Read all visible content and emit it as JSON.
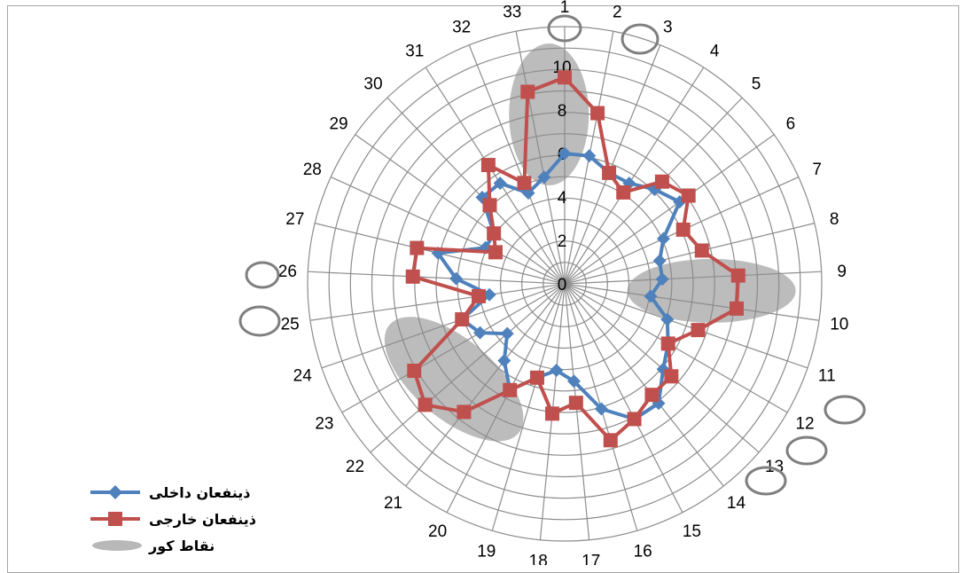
{
  "chart_data": {
    "type": "radar",
    "categories": [
      "1",
      "2",
      "3",
      "4",
      "5",
      "6",
      "7",
      "8",
      "9",
      "10",
      "11",
      "12",
      "13",
      "14",
      "15",
      "16",
      "17",
      "18",
      "19",
      "20",
      "21",
      "22",
      "23",
      "24",
      "25",
      "26",
      "27",
      "28",
      "29",
      "30",
      "31",
      "32",
      "33"
    ],
    "rlim": [
      0,
      10
    ],
    "rticks": [
      "0",
      "2",
      "4",
      "6",
      "8",
      "10"
    ],
    "grid": true,
    "series": [
      {
        "name": "ذینفعان داخلی",
        "color": "#4f81bd",
        "marker": "diamond",
        "values": [
          6.0,
          6.0,
          5.5,
          5.5,
          6.0,
          6.5,
          5.0,
          4.5,
          4.5,
          4.0,
          5.0,
          5.5,
          6.0,
          7.0,
          7.0,
          6.0,
          4.5,
          4.0,
          4.5,
          5.5,
          4.5,
          3.5,
          4.5,
          5.0,
          3.5,
          5.0,
          6.0,
          4.0,
          4.0,
          5.5,
          5.5,
          4.5,
          5.0
        ]
      },
      {
        "name": "ذینفعان خارجی",
        "color": "#c0504d",
        "marker": "square",
        "values": [
          9.5,
          8.0,
          5.5,
          5.0,
          6.5,
          7.0,
          6.0,
          6.5,
          8.0,
          8.0,
          6.5,
          5.5,
          6.5,
          6.5,
          7.0,
          7.5,
          5.5,
          6.0,
          4.5,
          5.5,
          7.5,
          8.5,
          8.0,
          5.0,
          4.0,
          7.0,
          7.0,
          3.5,
          4.0,
          5.0,
          6.5,
          5.0,
          9.0
        ]
      }
    ],
    "highlight": {
      "name": "نقاط کور",
      "color": "#a6a6a6",
      "categories": [
        "1",
        "33",
        "9",
        "10",
        "21",
        "22",
        "23"
      ]
    },
    "legend": "bottom-left"
  }
}
